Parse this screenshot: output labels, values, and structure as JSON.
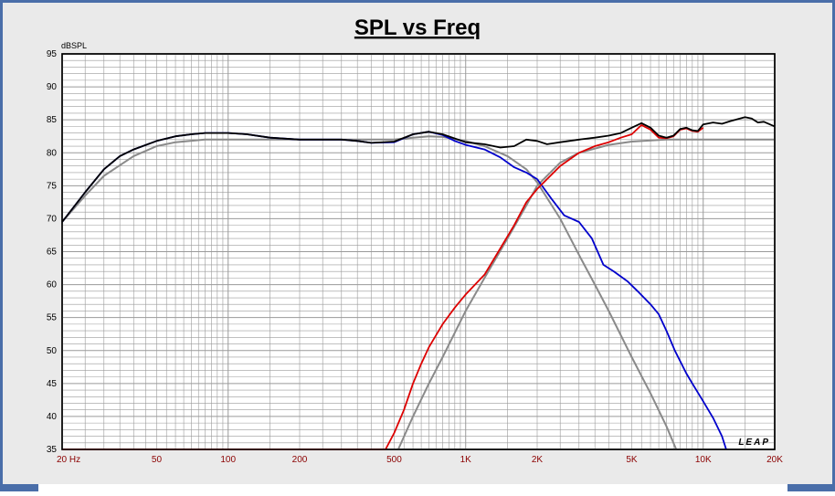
{
  "window": {
    "title": "SPL vs Freq"
  },
  "colors": {
    "frame": "#4a6ea9",
    "panel": "#eaeaea",
    "plot_bg": "#ffffff",
    "grid": "#9a9a9a",
    "ytick": "#000000",
    "xtick": "#8b0000",
    "total": "#000000",
    "woofer": "#0000cc",
    "tweeter": "#dd0000",
    "target": "#8a8a8a"
  },
  "chart_data": {
    "type": "line",
    "title": "SPL vs Freq",
    "ylabel": "dBSPL",
    "xlabel": "",
    "xscale": "log",
    "xlim": [
      20,
      20000
    ],
    "ylim": [
      35,
      95
    ],
    "grid": true,
    "logo": "LEAP",
    "x_tick_labels": [
      {
        "v": 20,
        "t": "20  Hz"
      },
      {
        "v": 50,
        "t": "50"
      },
      {
        "v": 100,
        "t": "100"
      },
      {
        "v": 200,
        "t": "200"
      },
      {
        "v": 500,
        "t": "500"
      },
      {
        "v": 1000,
        "t": "1K"
      },
      {
        "v": 2000,
        "t": "2K"
      },
      {
        "v": 5000,
        "t": "5K"
      },
      {
        "v": 10000,
        "t": "10K"
      },
      {
        "v": 20000,
        "t": "20K"
      }
    ],
    "y_tick_labels": [
      "35",
      "40",
      "45",
      "50",
      "55",
      "60",
      "65",
      "70",
      "75",
      "80",
      "85",
      "90",
      "95"
    ],
    "series": [
      {
        "key": "target_low",
        "color_key": "target",
        "points": [
          [
            20,
            69.5
          ],
          [
            25,
            73.5
          ],
          [
            30,
            76.5
          ],
          [
            40,
            79.5
          ],
          [
            50,
            81
          ],
          [
            60,
            81.6
          ],
          [
            80,
            82
          ],
          [
            100,
            82
          ],
          [
            200,
            82
          ],
          [
            300,
            82
          ],
          [
            400,
            82
          ],
          [
            500,
            82
          ],
          [
            600,
            82.3
          ],
          [
            700,
            82.5
          ],
          [
            800,
            82.4
          ],
          [
            1000,
            81.8
          ],
          [
            1200,
            81
          ],
          [
            1500,
            79.5
          ],
          [
            1800,
            77.5
          ],
          [
            2000,
            75.5
          ],
          [
            2500,
            70
          ],
          [
            3000,
            64.5
          ],
          [
            3500,
            60
          ],
          [
            4000,
            56
          ],
          [
            5000,
            49
          ],
          [
            6000,
            43.5
          ],
          [
            7000,
            38.5
          ],
          [
            7700,
            35
          ]
        ]
      },
      {
        "key": "target_high",
        "color_key": "target",
        "points": [
          [
            520,
            35
          ],
          [
            600,
            40
          ],
          [
            700,
            45
          ],
          [
            800,
            49
          ],
          [
            1000,
            56
          ],
          [
            1200,
            61
          ],
          [
            1500,
            67
          ],
          [
            1800,
            72
          ],
          [
            2000,
            75
          ],
          [
            2500,
            78.5
          ],
          [
            3000,
            80
          ],
          [
            4000,
            81.2
          ],
          [
            5000,
            81.7
          ],
          [
            7000,
            82
          ],
          [
            10000,
            82
          ],
          [
            20000,
            82
          ]
        ]
      },
      {
        "key": "woofer",
        "color_key": "woofer",
        "points": [
          [
            20,
            69.5
          ],
          [
            25,
            74
          ],
          [
            30,
            77.5
          ],
          [
            35,
            79.5
          ],
          [
            40,
            80.5
          ],
          [
            50,
            81.8
          ],
          [
            60,
            82.5
          ],
          [
            70,
            82.8
          ],
          [
            80,
            83
          ],
          [
            100,
            83
          ],
          [
            120,
            82.8
          ],
          [
            150,
            82.3
          ],
          [
            200,
            82
          ],
          [
            250,
            82
          ],
          [
            300,
            82
          ],
          [
            350,
            81.8
          ],
          [
            400,
            81.5
          ],
          [
            500,
            81.6
          ],
          [
            600,
            82.8
          ],
          [
            700,
            83.2
          ],
          [
            800,
            82.7
          ],
          [
            900,
            81.8
          ],
          [
            1000,
            81.2
          ],
          [
            1200,
            80.5
          ],
          [
            1400,
            79.3
          ],
          [
            1600,
            77.8
          ],
          [
            1800,
            77
          ],
          [
            2000,
            76
          ],
          [
            2300,
            73
          ],
          [
            2600,
            70.5
          ],
          [
            3000,
            69.5
          ],
          [
            3400,
            67
          ],
          [
            3800,
            63
          ],
          [
            4200,
            62
          ],
          [
            4800,
            60.5
          ],
          [
            5300,
            59
          ],
          [
            6000,
            57
          ],
          [
            6500,
            55.5
          ],
          [
            7000,
            53
          ],
          [
            7600,
            50
          ],
          [
            8500,
            46.5
          ],
          [
            9000,
            45
          ],
          [
            10000,
            42.3
          ],
          [
            11000,
            39.8
          ],
          [
            12000,
            37
          ],
          [
            12500,
            35
          ]
        ]
      },
      {
        "key": "tweeter",
        "color_key": "tweeter",
        "points": [
          [
            20,
            35
          ],
          [
            460,
            35
          ],
          [
            500,
            37.5
          ],
          [
            550,
            41
          ],
          [
            600,
            45
          ],
          [
            650,
            48
          ],
          [
            700,
            50.5
          ],
          [
            800,
            54
          ],
          [
            900,
            56.5
          ],
          [
            1000,
            58.5
          ],
          [
            1200,
            61.5
          ],
          [
            1400,
            65.5
          ],
          [
            1600,
            69
          ],
          [
            1800,
            72.5
          ],
          [
            2000,
            74.5
          ],
          [
            2200,
            76
          ],
          [
            2500,
            78
          ],
          [
            3000,
            80
          ],
          [
            3500,
            81
          ],
          [
            4000,
            81.6
          ],
          [
            4500,
            82.3
          ],
          [
            5000,
            82.8
          ],
          [
            5500,
            84.2
          ],
          [
            6000,
            83.5
          ],
          [
            6500,
            82.3
          ],
          [
            7000,
            82.2
          ],
          [
            7500,
            82.5
          ],
          [
            8000,
            83.5
          ],
          [
            8500,
            83.7
          ],
          [
            9000,
            83.3
          ],
          [
            9500,
            83.2
          ],
          [
            10000,
            83.8
          ]
        ]
      },
      {
        "key": "total",
        "color_key": "total",
        "points": [
          [
            20,
            69.5
          ],
          [
            25,
            74
          ],
          [
            30,
            77.5
          ],
          [
            35,
            79.5
          ],
          [
            40,
            80.5
          ],
          [
            50,
            81.8
          ],
          [
            60,
            82.5
          ],
          [
            70,
            82.8
          ],
          [
            80,
            83
          ],
          [
            100,
            83
          ],
          [
            120,
            82.8
          ],
          [
            150,
            82.3
          ],
          [
            200,
            82
          ],
          [
            250,
            82
          ],
          [
            300,
            82
          ],
          [
            350,
            81.8
          ],
          [
            400,
            81.5
          ],
          [
            500,
            81.7
          ],
          [
            600,
            82.8
          ],
          [
            700,
            83.2
          ],
          [
            800,
            82.8
          ],
          [
            1000,
            81.6
          ],
          [
            1200,
            81.3
          ],
          [
            1400,
            80.8
          ],
          [
            1600,
            81
          ],
          [
            1800,
            82
          ],
          [
            2000,
            81.8
          ],
          [
            2200,
            81.3
          ],
          [
            2500,
            81.6
          ],
          [
            3000,
            82
          ],
          [
            3500,
            82.3
          ],
          [
            4000,
            82.6
          ],
          [
            4500,
            83
          ],
          [
            5000,
            83.8
          ],
          [
            5500,
            84.5
          ],
          [
            6000,
            83.8
          ],
          [
            6500,
            82.6
          ],
          [
            7000,
            82.3
          ],
          [
            7500,
            82.6
          ],
          [
            8000,
            83.6
          ],
          [
            8500,
            83.8
          ],
          [
            9000,
            83.4
          ],
          [
            9500,
            83.3
          ],
          [
            10000,
            84.3
          ],
          [
            11000,
            84.6
          ],
          [
            12000,
            84.4
          ],
          [
            13000,
            84.8
          ],
          [
            15000,
            85.4
          ],
          [
            16000,
            85.2
          ],
          [
            17000,
            84.6
          ],
          [
            18000,
            84.7
          ],
          [
            20000,
            84
          ]
        ]
      }
    ]
  }
}
